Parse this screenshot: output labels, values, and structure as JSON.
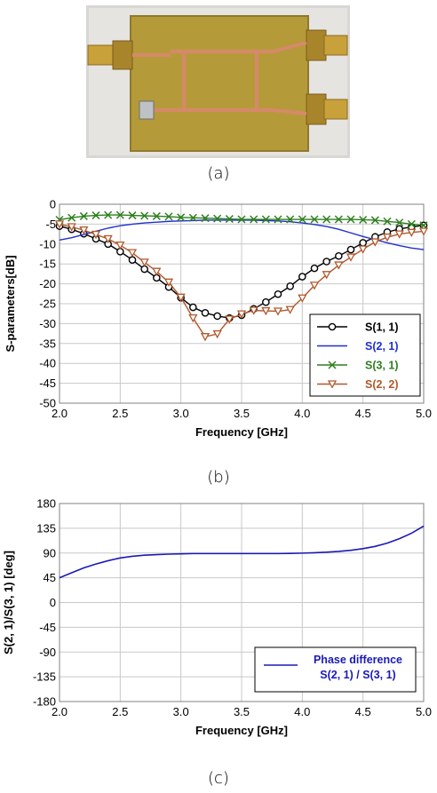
{
  "captions": {
    "a": "(a)",
    "b": "(b)",
    "c": "(c)"
  },
  "photo": {
    "description_icon": "pcb-coupler-photo"
  },
  "colors": {
    "s11": "#000000",
    "s21": "#1f2fd0",
    "s31": "#2f7f1f",
    "s22": "#b0582c",
    "phase": "#1a1ab8",
    "grid": "#c8c8c8",
    "pcb": "#b59a3a"
  },
  "chart_data": [
    {
      "type": "line",
      "title": "",
      "xlabel": "Frequency [GHz]",
      "ylabel": "S-parameters[dB]",
      "xlim": [
        2.0,
        5.0
      ],
      "ylim": [
        -50,
        0
      ],
      "xticks": [
        "2.0",
        "2.5",
        "3.0",
        "3.5",
        "4.0",
        "4.5",
        "5.0"
      ],
      "yticks": [
        "0",
        "-5",
        "-10",
        "-15",
        "-20",
        "-25",
        "-30",
        "-35",
        "-40",
        "-45",
        "-50"
      ],
      "grid": true,
      "legend_position": "bottom-right",
      "x": [
        2.0,
        2.1,
        2.2,
        2.3,
        2.4,
        2.5,
        2.6,
        2.7,
        2.8,
        2.9,
        3.0,
        3.1,
        3.2,
        3.3,
        3.4,
        3.5,
        3.6,
        3.7,
        3.8,
        3.9,
        4.0,
        4.1,
        4.2,
        4.3,
        4.4,
        4.5,
        4.6,
        4.7,
        4.8,
        4.9,
        5.0
      ],
      "series": [
        {
          "name": "S(1, 1)",
          "marker": "circle",
          "values": [
            -5.5,
            -6.3,
            -7.4,
            -8.7,
            -10.0,
            -11.9,
            -14.0,
            -16.3,
            -18.5,
            -20.8,
            -23.5,
            -25.9,
            -27.3,
            -28.1,
            -28.6,
            -27.9,
            -26.3,
            -24.6,
            -22.6,
            -20.6,
            -18.2,
            -16.1,
            -14.4,
            -13.0,
            -11.4,
            -9.7,
            -8.2,
            -7.0,
            -6.2,
            -5.7,
            -5.3
          ]
        },
        {
          "name": "S(2, 1)",
          "marker": "none",
          "values": [
            -9.0,
            -8.4,
            -7.6,
            -6.8,
            -6.0,
            -5.4,
            -5.0,
            -4.7,
            -4.5,
            -4.3,
            -4.2,
            -4.1,
            -4.0,
            -4.0,
            -4.0,
            -4.0,
            -4.0,
            -4.1,
            -4.2,
            -4.4,
            -4.7,
            -5.1,
            -5.6,
            -6.3,
            -7.2,
            -8.1,
            -8.9,
            -9.7,
            -10.4,
            -11.0,
            -11.4
          ]
        },
        {
          "name": "S(3, 1)",
          "marker": "x",
          "values": [
            -3.9,
            -3.4,
            -3.0,
            -2.8,
            -2.7,
            -2.7,
            -2.8,
            -2.9,
            -3.0,
            -3.1,
            -3.3,
            -3.4,
            -3.5,
            -3.6,
            -3.7,
            -3.8,
            -3.8,
            -3.8,
            -3.8,
            -3.8,
            -3.8,
            -3.8,
            -3.8,
            -3.8,
            -3.8,
            -3.9,
            -4.0,
            -4.3,
            -4.6,
            -5.0,
            -5.3
          ]
        },
        {
          "name": "S(2, 2)",
          "marker": "triangle-down",
          "values": [
            -5.0,
            -5.7,
            -6.5,
            -7.6,
            -8.7,
            -10.3,
            -12.2,
            -14.6,
            -16.9,
            -19.6,
            -23.4,
            -28.6,
            -33.3,
            -32.6,
            -28.9,
            -27.6,
            -26.7,
            -26.8,
            -26.9,
            -26.5,
            -23.6,
            -20.4,
            -17.7,
            -15.3,
            -13.3,
            -11.3,
            -9.5,
            -8.3,
            -7.5,
            -7.1,
            -6.8
          ]
        }
      ]
    },
    {
      "type": "line",
      "title": "",
      "xlabel": "Frequency [GHz]",
      "ylabel": "S(2, 1)/S(3, 1) [deg]",
      "xlim": [
        2.0,
        5.0
      ],
      "ylim": [
        -180,
        180
      ],
      "xticks": [
        "2.0",
        "2.5",
        "3.0",
        "3.5",
        "4.0",
        "4.5",
        "5.0"
      ],
      "yticks": [
        "180",
        "135",
        "90",
        "45",
        "0",
        "-45",
        "-90",
        "-135",
        "-180"
      ],
      "grid": true,
      "legend_position": "bottom-right",
      "x": [
        2.0,
        2.1,
        2.2,
        2.3,
        2.4,
        2.5,
        2.6,
        2.7,
        2.8,
        2.9,
        3.0,
        3.1,
        3.2,
        3.3,
        3.4,
        3.5,
        3.6,
        3.7,
        3.8,
        3.9,
        4.0,
        4.1,
        4.2,
        4.3,
        4.4,
        4.5,
        4.6,
        4.7,
        4.8,
        4.9,
        5.0
      ],
      "series": [
        {
          "name": "Phase difference S(2, 1) / S(3, 1)",
          "legend_lines": [
            "Phase difference",
            "S(2, 1) / S(3, 1)"
          ],
          "values": [
            45,
            54,
            63,
            70,
            76,
            81,
            84,
            86,
            87,
            88,
            88.5,
            89,
            89,
            89,
            89,
            89,
            89,
            89,
            89,
            89.3,
            89.8,
            90.5,
            91.5,
            93,
            95,
            98,
            102,
            108,
            116,
            126,
            139
          ]
        }
      ]
    }
  ]
}
